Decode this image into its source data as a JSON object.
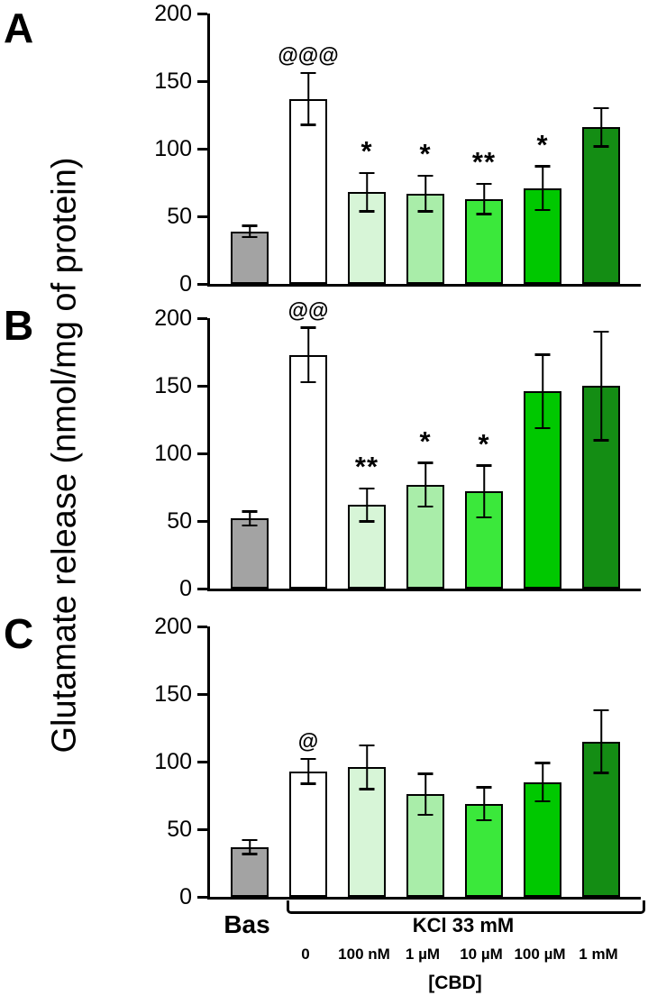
{
  "figure": {
    "y_axis_label": "Glutamate release (nmol/mg of protein)",
    "x_base_label": "Bas",
    "x_group_label": "KCl 33 mM",
    "cbd_label": "[CBD]",
    "concentrations": [
      "0",
      "100 nM",
      "1 µM",
      "10 µM",
      "100 µM",
      "1 mM"
    ],
    "bar_colors": [
      "#a3a3a3",
      "#ffffff",
      "#d7f5d7",
      "#a9eda9",
      "#3be83b",
      "#00c800",
      "#148d14"
    ],
    "axis_color": "#000000"
  },
  "chart_data": [
    {
      "type": "bar",
      "panel": "A",
      "title": "",
      "ylabel": "Glutamate release (nmol/mg of protein)",
      "xlabel": "[CBD]",
      "ylim": [
        0,
        200
      ],
      "yticks": [
        0,
        50,
        100,
        150,
        200
      ],
      "categories": [
        "Bas",
        "0",
        "100 nM",
        "1 µM",
        "10 µM",
        "100 µM",
        "1 mM"
      ],
      "group_label": "KCl 33 mM",
      "values": [
        39,
        137,
        68,
        67,
        63,
        71,
        116
      ],
      "errors": [
        5,
        20,
        15,
        14,
        12,
        17,
        15
      ],
      "annotations": [
        "",
        "@@@",
        "*",
        "*",
        "**",
        "*",
        ""
      ]
    },
    {
      "type": "bar",
      "panel": "B",
      "title": "",
      "ylabel": "Glutamate release (nmol/mg of protein)",
      "xlabel": "[CBD]",
      "ylim": [
        0,
        200
      ],
      "yticks": [
        0,
        50,
        100,
        150,
        200
      ],
      "categories": [
        "Bas",
        "0",
        "100 nM",
        "1 µM",
        "10 µM",
        "100 µM",
        "1 mM"
      ],
      "group_label": "KCl 33 mM",
      "values": [
        52,
        173,
        62,
        77,
        72,
        146,
        150
      ],
      "errors": [
        6,
        21,
        13,
        17,
        20,
        28,
        41
      ],
      "annotations": [
        "",
        "@@",
        "**",
        "*",
        "*",
        "",
        ""
      ]
    },
    {
      "type": "bar",
      "panel": "C",
      "title": "",
      "ylabel": "Glutamate release (nmol/mg of protein)",
      "xlabel": "[CBD]",
      "ylim": [
        0,
        200
      ],
      "yticks": [
        0,
        50,
        100,
        150,
        200
      ],
      "categories": [
        "Bas",
        "0",
        "100 nM",
        "1 µM",
        "10 µM",
        "100 µM",
        "1 mM"
      ],
      "group_label": "KCl 33 mM",
      "values": [
        37,
        93,
        96,
        76,
        69,
        85,
        115
      ],
      "errors": [
        6,
        10,
        17,
        16,
        13,
        15,
        24
      ],
      "annotations": [
        "",
        "@",
        "",
        "",
        "",
        "",
        ""
      ]
    }
  ]
}
